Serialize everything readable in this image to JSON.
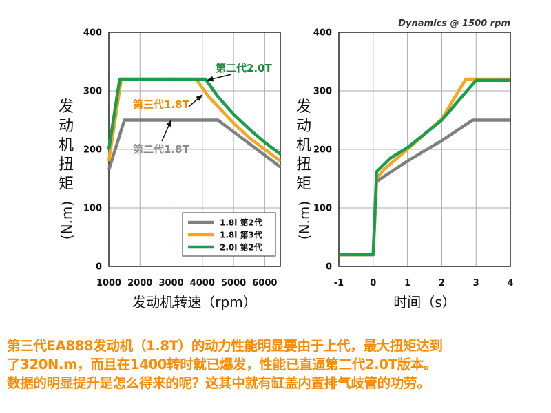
{
  "chart_data": [
    {
      "type": "line",
      "title": "",
      "xlabel": "发动机转速（rpm）",
      "ylabel": "发动机扭矩(N.m)",
      "xlim": [
        1000,
        6500
      ],
      "ylim": [
        0,
        400
      ],
      "xticks": [
        "1000",
        "2000",
        "3000",
        "4000",
        "5000",
        "6000"
      ],
      "yticks": [
        "0",
        "100",
        "200",
        "300",
        "400"
      ],
      "grid": true,
      "legend": {
        "position": "bottom-right",
        "entries": [
          "1.8l 第2代",
          "1.8l 第3代",
          "2.0l 第2代"
        ]
      },
      "series": [
        {
          "name": "1.8l 第2代",
          "color": "#808080",
          "points": [
            [
              1000,
              165
            ],
            [
              1500,
              250
            ],
            [
              2000,
              250
            ],
            [
              3000,
              250
            ],
            [
              4000,
              250
            ],
            [
              4500,
              250
            ],
            [
              5000,
              230
            ],
            [
              5500,
              210
            ],
            [
              6000,
              190
            ],
            [
              6500,
              170
            ]
          ]
        },
        {
          "name": "1.8l 第3代",
          "color": "#f5a623",
          "points": [
            [
              1000,
              180
            ],
            [
              1400,
              320
            ],
            [
              2000,
              320
            ],
            [
              3000,
              320
            ],
            [
              3800,
              320
            ],
            [
              4200,
              290
            ],
            [
              5000,
              245
            ],
            [
              5500,
              220
            ],
            [
              6000,
              200
            ],
            [
              6500,
              180
            ]
          ]
        },
        {
          "name": "2.0l 第2代",
          "color": "#1a9e4b",
          "points": [
            [
              1000,
              200
            ],
            [
              1350,
              320
            ],
            [
              2000,
              320
            ],
            [
              3000,
              320
            ],
            [
              4100,
              320
            ],
            [
              4500,
              290
            ],
            [
              5000,
              260
            ],
            [
              5500,
              235
            ],
            [
              6000,
              212
            ],
            [
              6500,
              192
            ]
          ]
        }
      ],
      "annotations": [
        {
          "text": "第二代2.0T",
          "color": "#1a8a3a",
          "target": [
            4150,
            318
          ]
        },
        {
          "text": "第三代1.8T",
          "color": "#f08a00",
          "target": [
            4000,
            293
          ]
        },
        {
          "text": "第二代1.8T",
          "color": "#8a8a8a",
          "target": [
            3000,
            250
          ]
        }
      ]
    },
    {
      "type": "line",
      "title": "Dynamics @ 1500 rpm",
      "xlabel": "时间（s）",
      "ylabel": "发动机扭矩(N.m)",
      "xlim": [
        -1,
        4
      ],
      "ylim": [
        0,
        400
      ],
      "xticks": [
        "-1",
        "0",
        "1",
        "2",
        "3",
        "4"
      ],
      "yticks": [
        "0",
        "100",
        "200",
        "300",
        "400"
      ],
      "grid": true,
      "series": [
        {
          "name": "1.8l 第2代",
          "color": "#808080",
          "points": [
            [
              -1,
              20
            ],
            [
              0,
              20
            ],
            [
              0.1,
              145
            ],
            [
              0.3,
              153
            ],
            [
              1,
              180
            ],
            [
              2,
              215
            ],
            [
              2.9,
              250
            ],
            [
              4,
              250
            ]
          ]
        },
        {
          "name": "1.8l 第3代",
          "color": "#f5a623",
          "points": [
            [
              -1,
              20
            ],
            [
              0,
              20
            ],
            [
              0.1,
              150
            ],
            [
              0.3,
              165
            ],
            [
              1,
              200
            ],
            [
              2,
              252
            ],
            [
              2.7,
              320
            ],
            [
              4,
              320
            ]
          ]
        },
        {
          "name": "2.0l 第2代",
          "color": "#1a9e4b",
          "points": [
            [
              -1,
              20
            ],
            [
              0,
              20
            ],
            [
              0.1,
              162
            ],
            [
              0.5,
              185
            ],
            [
              1,
              203
            ],
            [
              2,
              250
            ],
            [
              3,
              318
            ],
            [
              4,
              318
            ]
          ]
        }
      ]
    }
  ],
  "caption": [
    "第三代EA888发动机（1.8T）的动力性能明显要由于上代，最大扭矩达到",
    "了320N.m，而且在1400转时就已爆发，性能已直逼第二代2.0T版本。",
    "数据的明显提升是怎么得来的呢？这其中就有缸盖内置排气歧管的功劳。"
  ]
}
